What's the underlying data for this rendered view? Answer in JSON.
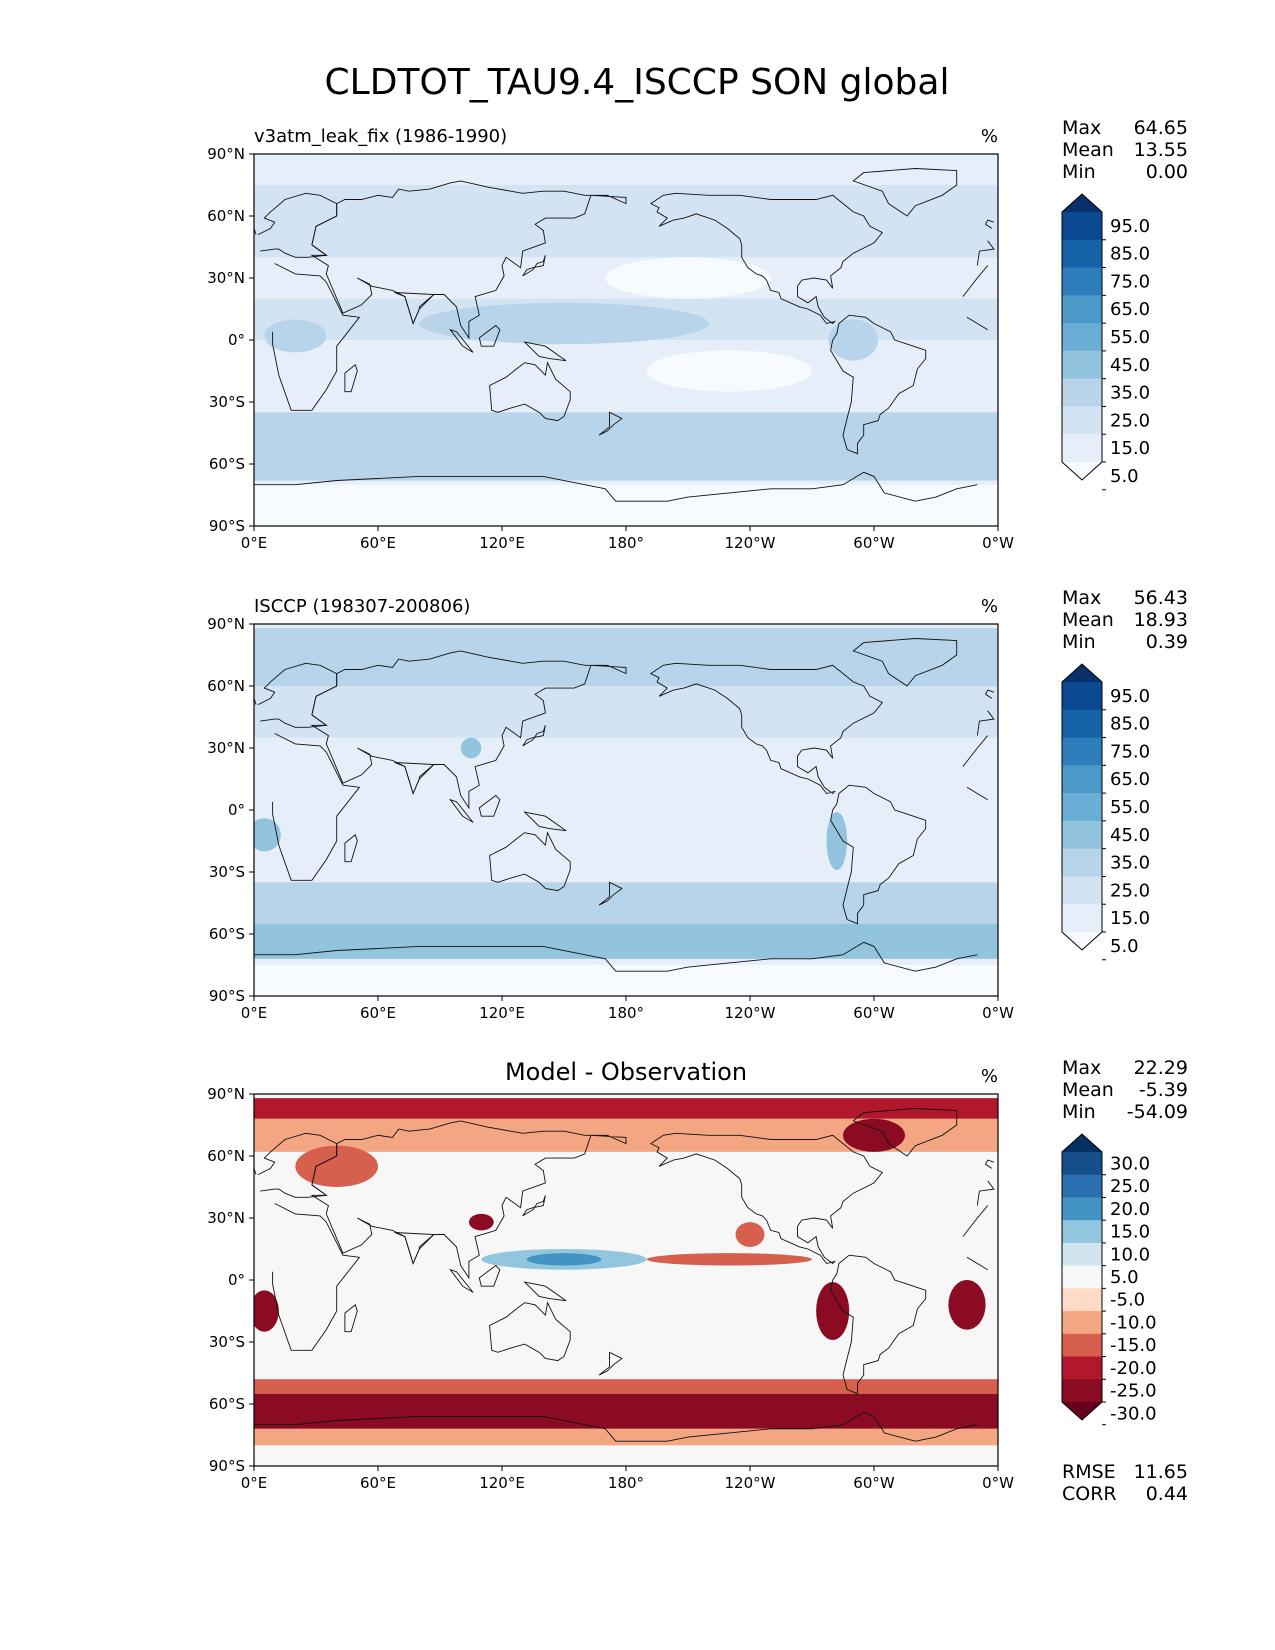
{
  "figure": {
    "title": "CLDTOT_TAU9.4_ISCCP SON global"
  },
  "chart_data": [
    {
      "type": "heatmap",
      "panel": "test",
      "title": "v3atm_leak_fix (1986-1990)",
      "units": "%",
      "stats": [
        {
          "label": "Max",
          "value": "64.65"
        },
        {
          "label": "Mean",
          "value": "13.55"
        },
        {
          "label": "Min",
          "value": "0.00"
        }
      ],
      "xticks": [
        "0°E",
        "60°E",
        "120°E",
        "180°",
        "120°W",
        "60°W",
        "0°W"
      ],
      "yticks": [
        "90°N",
        "60°N",
        "30°N",
        "0°",
        "30°S",
        "60°S",
        "90°S"
      ],
      "colorbar": {
        "levels": [
          "95.0",
          "85.0",
          "75.0",
          "65.0",
          "55.0",
          "45.0",
          "35.0",
          "25.0",
          "15.0",
          "5.0"
        ],
        "colors": [
          "#08306b",
          "#0b4a92",
          "#1763aa",
          "#2f7ebc",
          "#4b98c9",
          "#6aaed6",
          "#92c4de",
          "#b7d4ea",
          "#d2e3f3",
          "#e6eff9",
          "#f7fbff"
        ]
      }
    },
    {
      "type": "heatmap",
      "panel": "reference",
      "title": "ISCCP (198307-200806)",
      "units": "%",
      "stats": [
        {
          "label": "Max",
          "value": "56.43"
        },
        {
          "label": "Mean",
          "value": "18.93"
        },
        {
          "label": "Min",
          "value": "0.39"
        }
      ],
      "xticks": [
        "0°E",
        "60°E",
        "120°E",
        "180°",
        "120°W",
        "60°W",
        "0°W"
      ],
      "yticks": [
        "90°N",
        "60°N",
        "30°N",
        "0°",
        "30°S",
        "60°S",
        "90°S"
      ],
      "colorbar": {
        "levels": [
          "95.0",
          "85.0",
          "75.0",
          "65.0",
          "55.0",
          "45.0",
          "35.0",
          "25.0",
          "15.0",
          "5.0"
        ],
        "colors": [
          "#08306b",
          "#0b4a92",
          "#1763aa",
          "#2f7ebc",
          "#4b98c9",
          "#6aaed6",
          "#92c4de",
          "#b7d4ea",
          "#d2e3f3",
          "#e6eff9",
          "#f7fbff"
        ]
      }
    },
    {
      "type": "heatmap",
      "panel": "difference",
      "title": "Model - Observation",
      "units": "%",
      "stats": [
        {
          "label": "Max",
          "value": "22.29"
        },
        {
          "label": "Mean",
          "value": "-5.39"
        },
        {
          "label": "Min",
          "value": "-54.09"
        }
      ],
      "extra_stats": [
        {
          "label": "RMSE",
          "value": "11.65"
        },
        {
          "label": "CORR",
          "value": "0.44"
        }
      ],
      "xticks": [
        "0°E",
        "60°E",
        "120°E",
        "180°",
        "120°W",
        "60°W",
        "0°W"
      ],
      "yticks": [
        "90°N",
        "60°N",
        "30°N",
        "0°",
        "30°S",
        "60°S",
        "90°S"
      ],
      "colorbar": {
        "levels": [
          "30.0",
          "25.0",
          "20.0",
          "15.0",
          "10.0",
          "5.0",
          "-5.0",
          "-10.0",
          "-15.0",
          "-20.0",
          "-25.0",
          "-30.0"
        ],
        "colors": [
          "#053061",
          "#164f8a",
          "#2b70b1",
          "#4393c3",
          "#92c5de",
          "#d1e5f0",
          "#f7f7f7",
          "#fddbc7",
          "#f4a582",
          "#d6604d",
          "#b2182b",
          "#8b0c22",
          "#67001f"
        ]
      }
    }
  ]
}
